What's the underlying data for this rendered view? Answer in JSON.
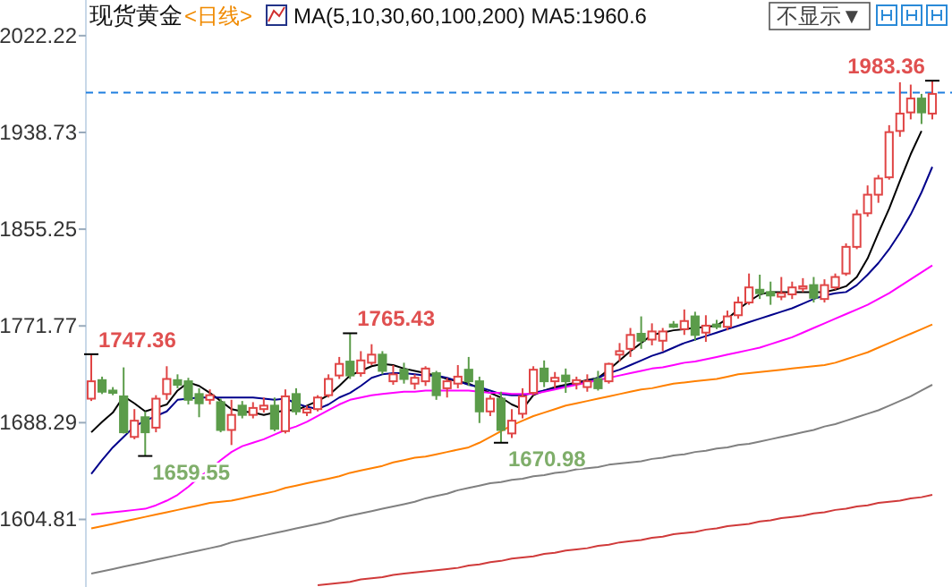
{
  "chart_data": {
    "type": "candlestick",
    "title": "现货黄金",
    "subtitle": "<日线>",
    "categories": [
      null,
      null,
      null,
      null,
      null,
      null,
      null,
      null,
      null,
      null,
      null,
      null,
      null,
      null,
      null,
      null,
      null,
      null,
      null,
      null,
      null,
      null,
      null,
      null,
      null,
      null,
      null,
      null,
      null,
      null,
      null,
      null,
      null,
      null,
      null,
      null,
      null,
      null,
      null,
      null,
      null,
      null,
      null,
      null,
      null,
      null,
      null,
      null,
      null,
      null,
      null,
      null,
      null,
      null,
      null,
      null,
      null,
      null,
      null,
      null,
      null,
      null,
      null,
      null,
      null,
      null,
      null,
      null,
      null,
      null,
      null,
      null,
      null,
      null,
      null,
      null,
      null,
      null,
      null
    ],
    "ohlc": [
      [
        1709,
        1747.36,
        1707,
        1724
      ],
      [
        1725,
        1728,
        1713,
        1715
      ],
      [
        1716,
        1719,
        1712,
        1714
      ],
      [
        1711,
        1736,
        1679,
        1680
      ],
      [
        1676,
        1700,
        1674,
        1690
      ],
      [
        1693,
        1698,
        1659.55,
        1680
      ],
      [
        1684,
        1712,
        1680,
        1709
      ],
      [
        1713,
        1737,
        1708,
        1726
      ],
      [
        1725,
        1730,
        1718,
        1721
      ],
      [
        1724,
        1727,
        1704,
        1708
      ],
      [
        1713,
        1718,
        1693,
        1705
      ],
      [
        1708,
        1717,
        1704,
        1712
      ],
      [
        1706,
        1709,
        1680,
        1682
      ],
      [
        1682,
        1708,
        1669,
        1695
      ],
      [
        1703,
        1707,
        1692,
        1695
      ],
      [
        1695,
        1706,
        1692,
        1701
      ],
      [
        1700,
        1710,
        1697,
        1703
      ],
      [
        1703,
        1710,
        1681,
        1683
      ],
      [
        1681,
        1717,
        1679,
        1711
      ],
      [
        1713,
        1718,
        1695,
        1698
      ],
      [
        1697,
        1703,
        1694,
        1700
      ],
      [
        1700,
        1712,
        1698,
        1710
      ],
      [
        1712,
        1730,
        1710,
        1726
      ],
      [
        1729,
        1745,
        1726,
        1739
      ],
      [
        1741,
        1765.43,
        1726,
        1729
      ],
      [
        1731,
        1750,
        1728,
        1742
      ],
      [
        1740,
        1756,
        1738,
        1747
      ],
      [
        1747,
        1750,
        1730,
        1733
      ],
      [
        1724,
        1738,
        1721,
        1730
      ],
      [
        1734,
        1740,
        1722,
        1726
      ],
      [
        1722,
        1730,
        1717,
        1727
      ],
      [
        1724,
        1737,
        1720,
        1735
      ],
      [
        1731,
        1733,
        1708,
        1712
      ],
      [
        1718,
        1727,
        1710,
        1724
      ],
      [
        1722,
        1738,
        1718,
        1728
      ],
      [
        1734,
        1745,
        1720,
        1724
      ],
      [
        1724,
        1728,
        1688,
        1698
      ],
      [
        1698,
        1712,
        1694,
        1709
      ],
      [
        1709,
        1715,
        1670.98,
        1682
      ],
      [
        1679,
        1700,
        1675,
        1690
      ],
      [
        1696,
        1718,
        1692,
        1711
      ],
      [
        1714,
        1737,
        1712,
        1734
      ],
      [
        1735,
        1742,
        1719,
        1724
      ],
      [
        1724,
        1732,
        1718,
        1727
      ],
      [
        1729,
        1735,
        1714,
        1724
      ],
      [
        1722,
        1728,
        1717,
        1725
      ],
      [
        1719,
        1730,
        1715,
        1724
      ],
      [
        1726,
        1733,
        1716,
        1718
      ],
      [
        1724,
        1740,
        1722,
        1739
      ],
      [
        1747,
        1757,
        1741,
        1750
      ],
      [
        1752,
        1770,
        1745,
        1764
      ],
      [
        1765,
        1780,
        1752,
        1759
      ],
      [
        1760,
        1774,
        1755,
        1767
      ],
      [
        1759,
        1770,
        1750,
        1767
      ],
      [
        1773,
        1776,
        1770,
        1771
      ],
      [
        1769,
        1786,
        1764,
        1776
      ],
      [
        1780,
        1784,
        1759,
        1764
      ],
      [
        1766,
        1781,
        1758,
        1772
      ],
      [
        1773,
        1777,
        1769,
        1771
      ],
      [
        1771,
        1785,
        1768,
        1780
      ],
      [
        1781,
        1797,
        1778,
        1792
      ],
      [
        1792,
        1817,
        1790,
        1805
      ],
      [
        1803,
        1816,
        1795,
        1800
      ],
      [
        1801,
        1810,
        1790,
        1798
      ],
      [
        1797,
        1814,
        1794,
        1800
      ],
      [
        1799,
        1810,
        1795,
        1805
      ],
      [
        1804,
        1813,
        1801,
        1806
      ],
      [
        1807,
        1814,
        1792,
        1796
      ],
      [
        1795,
        1812,
        1792,
        1807
      ],
      [
        1805,
        1817,
        1803,
        1814
      ],
      [
        1817,
        1843,
        1815,
        1840
      ],
      [
        1840,
        1872,
        1838,
        1868
      ],
      [
        1869,
        1893,
        1866,
        1885
      ],
      [
        1885,
        1902,
        1878,
        1899
      ],
      [
        1900,
        1945,
        1898,
        1939
      ],
      [
        1940,
        1982,
        1935,
        1955
      ],
      [
        1956,
        1980,
        1950,
        1968
      ],
      [
        1968,
        1972,
        1946,
        1956
      ],
      [
        1955,
        1983.36,
        1950,
        1972
      ]
    ],
    "colors": [
      "#e04545",
      "#5b9c4a",
      "#5b9c4a",
      "#5b9c4a",
      "#e04545",
      "#5b9c4a",
      "#e04545",
      "#e04545",
      "#5b9c4a",
      "#5b9c4a",
      "#5b9c4a",
      "#e04545",
      "#5b9c4a",
      "#e04545",
      "#5b9c4a",
      "#e04545",
      "#e04545",
      "#5b9c4a",
      "#e04545",
      "#5b9c4a",
      "#e04545",
      "#e04545",
      "#e04545",
      "#e04545",
      "#5b9c4a",
      "#e04545",
      "#e04545",
      "#5b9c4a",
      "#e04545",
      "#5b9c4a",
      "#e04545",
      "#e04545",
      "#5b9c4a",
      "#e04545",
      "#e04545",
      "#5b9c4a",
      "#5b9c4a",
      "#e04545",
      "#5b9c4a",
      "#e04545",
      "#e04545",
      "#e04545",
      "#5b9c4a",
      "#e04545",
      "#5b9c4a",
      "#e04545",
      "#e04545",
      "#5b9c4a",
      "#e04545",
      "#e04545",
      "#e04545",
      "#5b9c4a",
      "#e04545",
      "#e04545",
      "#5b9c4a",
      "#e04545",
      "#5b9c4a",
      "#e04545",
      "#5b9c4a",
      "#e04545",
      "#e04545",
      "#e04545",
      "#5b9c4a",
      "#5b9c4a",
      "#e04545",
      "#e04545",
      "#e04545",
      "#5b9c4a",
      "#e04545",
      "#e04545",
      "#e04545",
      "#e04545",
      "#e04545",
      "#e04545",
      "#e04545",
      "#e04545",
      "#e04545",
      "#5b9c4a",
      "#e04545"
    ],
    "series": [
      {
        "type": "line",
        "color": "#000000",
        "values": [
          1680,
          1689,
          1697,
          1711,
          1705,
          1698,
          1701,
          1704,
          1716,
          1723,
          1720,
          1714,
          1707,
          1700,
          1698,
          1697,
          1695,
          1697,
          1699,
          1699,
          1703,
          1707,
          1712,
          1720,
          1729,
          1733,
          1737,
          1739,
          1738,
          1735,
          1733,
          1731,
          1729,
          1726,
          1724,
          1722,
          1718,
          1714,
          1710,
          1704,
          1700,
          1712,
          1716,
          1719,
          1721,
          1723,
          1725,
          1727,
          1734,
          1742,
          1750,
          1757,
          1764,
          1766,
          1768,
          1769,
          1770,
          1771,
          1772,
          1778,
          1786,
          1793,
          1799,
          1801,
          1801,
          1801,
          1801,
          1801,
          1801,
          1803,
          1806,
          1814,
          1830,
          1852,
          1873,
          1897,
          1920,
          1940,
          null
        ]
      },
      {
        "type": "line",
        "color": "#00008b",
        "values": [
          1644,
          1656,
          1667,
          1676,
          1685,
          1690,
          1694,
          1698,
          1708,
          1709,
          1710,
          1710,
          1710,
          1710,
          1710,
          1710,
          1709,
          1708,
          1709,
          1705,
          1702,
          1700,
          1704,
          1710,
          1714,
          1720,
          1727,
          1730,
          1731,
          1731,
          1730,
          1729,
          1729,
          1727,
          1724,
          1721,
          1719,
          1716,
          1713,
          1712,
          1712,
          1714,
          1716,
          1718,
          1720,
          1722,
          1724,
          1727,
          1731,
          1734,
          1738,
          1742,
          1746,
          1749,
          1753,
          1757,
          1760,
          1763,
          1766,
          1769,
          1772,
          1775,
          1778,
          1781,
          1784,
          1787,
          1791,
          1795,
          1798,
          1800,
          1801,
          1807,
          1816,
          1826,
          1838,
          1852,
          1868,
          1887,
          1909
        ]
      },
      {
        "type": "line",
        "color": "#ff00ff",
        "values": [
          1609,
          1610,
          1611,
          1612,
          1613,
          1614,
          1617,
          1621,
          1626,
          1633,
          1641,
          1648,
          1656,
          1663,
          1668,
          1671,
          1674,
          1678,
          1682,
          1685,
          1689,
          1694,
          1699,
          1704,
          1708,
          1710,
          1712,
          1713,
          1714,
          1715,
          1715,
          1716,
          1716,
          1716,
          1716,
          1716,
          1715,
          1714,
          1714,
          1713,
          1713,
          1713,
          1715,
          1717,
          1719,
          1721,
          1723,
          1725,
          1727,
          1729,
          1731,
          1733,
          1735,
          1736,
          1738,
          1740,
          1741,
          1743,
          1745,
          1747,
          1749,
          1751,
          1753,
          1756,
          1759,
          1762,
          1766,
          1770,
          1774,
          1778,
          1782,
          1786,
          1790,
          1795,
          1800,
          1806,
          1812,
          1818,
          1824
        ]
      },
      {
        "type": "line",
        "color": "#ff8000",
        "values": [
          1597,
          1599,
          1601,
          1603,
          1605,
          1607,
          1609,
          1611,
          1613,
          1615,
          1617,
          1619,
          1620,
          1621,
          1623,
          1625,
          1627,
          1629,
          1632,
          1634,
          1636,
          1638,
          1640,
          1642,
          1645,
          1647,
          1649,
          1651,
          1654,
          1656,
          1658,
          1659,
          1661,
          1663,
          1665,
          1667,
          1671,
          1676,
          1681,
          1686,
          1690,
          1694,
          1697,
          1700,
          1703,
          1705,
          1707,
          1709,
          1711,
          1713,
          1715,
          1717,
          1718,
          1720,
          1722,
          1723,
          1724,
          1725,
          1726,
          1728,
          1730,
          1731,
          1732,
          1733,
          1734,
          1735,
          1736,
          1737,
          1738,
          1740,
          1743,
          1746,
          1749,
          1753,
          1757,
          1761,
          1765,
          1769,
          1773
        ]
      },
      {
        "type": "line",
        "color": "#808080",
        "values": [
          1558,
          1560,
          1562,
          1564,
          1566,
          1568,
          1570,
          1572,
          1574,
          1576,
          1578,
          1580,
          1582,
          1585,
          1587,
          1589,
          1591,
          1593,
          1595,
          1597,
          1599,
          1601,
          1603,
          1606,
          1608,
          1610,
          1612,
          1614,
          1616,
          1618,
          1620,
          1623,
          1625,
          1627,
          1630,
          1632,
          1634,
          1636,
          1637,
          1639,
          1640,
          1642,
          1643,
          1645,
          1646,
          1648,
          1649,
          1650,
          1652,
          1653,
          1654,
          1655,
          1657,
          1658,
          1660,
          1661,
          1663,
          1664,
          1666,
          1667,
          1669,
          1670,
          1672,
          1674,
          1676,
          1678,
          1680,
          1682,
          1685,
          1687,
          1690,
          1693,
          1696,
          1699,
          1703,
          1707,
          1711,
          1716,
          1721
        ]
      },
      {
        "type": "line",
        "color": "#d03a3a",
        "values": [
          null,
          null,
          null,
          null,
          null,
          null,
          null,
          null,
          null,
          null,
          null,
          null,
          null,
          null,
          null,
          null,
          null,
          null,
          null,
          null,
          null,
          1548,
          1549,
          1550,
          1551,
          1553,
          1554,
          1555,
          1557,
          1558,
          1559,
          1560,
          1561,
          1562,
          1563,
          1565,
          1566,
          1568,
          1569,
          1571,
          1572,
          1573,
          1575,
          1576,
          1578,
          1579,
          1580,
          1582,
          1583,
          1585,
          1586,
          1587,
          1589,
          1590,
          1592,
          1593,
          1594,
          1596,
          1597,
          1599,
          1600,
          1601,
          1603,
          1604,
          1606,
          1607,
          1608,
          1610,
          1611,
          1613,
          1614,
          1616,
          1617,
          1619,
          1620,
          1621,
          1623,
          1624,
          1626
        ]
      }
    ],
    "ylim": [
      1546.5,
      2053
    ],
    "yticks": [
      1604.81,
      1688.29,
      1771.77,
      1855.25,
      1938.73,
      2022.22
    ],
    "tick_labels": "y",
    "ref_lines": [
      {
        "axis": "y",
        "value": 1973,
        "color": "#1e7fe0",
        "line_style": "dashed"
      }
    ],
    "annotations": [
      "MA(5,10,30,60,100,200) MA5:1960.6",
      "不显示▼",
      "1747.36",
      "1659.55",
      "1765.43",
      "1670.98",
      "1983.36"
    ]
  }
}
